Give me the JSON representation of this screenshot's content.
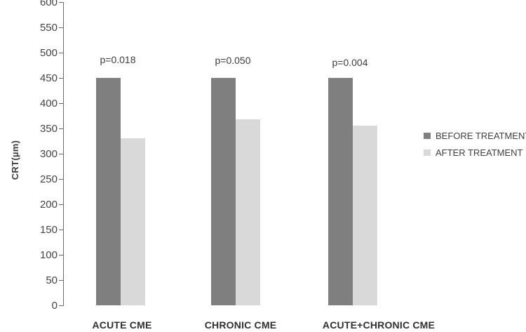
{
  "chart_data": {
    "type": "bar",
    "title": "",
    "categories": [
      "ACUTE CME",
      "CHRONIC CME",
      "ACUTE+CHRONIC CME"
    ],
    "series": [
      {
        "name": "BEFORE TREATMENT",
        "color": "#7f7f7f",
        "values": [
          450,
          450,
          450
        ]
      },
      {
        "name": "AFTER TREATMENT",
        "color": "#d9d9d9",
        "values": [
          330,
          368,
          355
        ]
      }
    ],
    "annotations": [
      "p=0.018",
      "p=0.050",
      "p=0.004"
    ],
    "xlabel": "",
    "ylabel": "CRT(µm)",
    "ylim": [
      0,
      600
    ],
    "ytick_step": 50,
    "grid": false,
    "legend_position": "right",
    "background_color": "#ffffff",
    "axis_color": "#6b6b6b"
  }
}
